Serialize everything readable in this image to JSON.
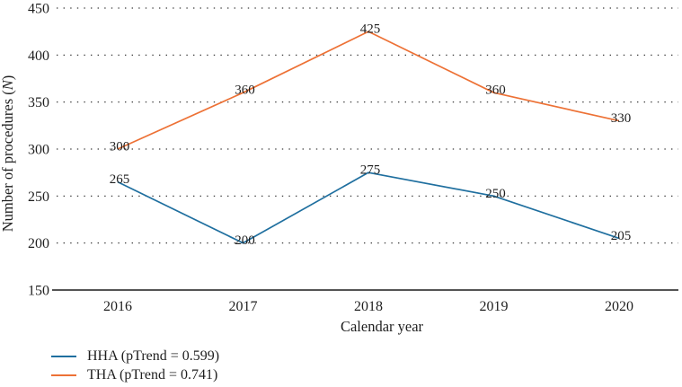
{
  "figure": {
    "background": "#ffffff",
    "text_color": "#1f1f1f"
  },
  "chart_data": {
    "type": "line",
    "title": "",
    "xlabel": "Calendar year",
    "ylabel": {
      "prefix": "Number of procedures (",
      "italic": "N",
      "suffix": ")"
    },
    "x_categories": [
      "2016",
      "2017",
      "2018",
      "2019",
      "2020"
    ],
    "y_ticks": [
      150,
      200,
      250,
      300,
      350,
      400,
      450
    ],
    "ylim": [
      150,
      450
    ],
    "grid": "horizontal dotted lines at every 50 units, no vertical grid",
    "grid_color": "#3c3c3c",
    "axis_color": "#1c1c1c",
    "legend_position": "bottom-left, below plot",
    "series": [
      {
        "name": "HHA",
        "legend_label": "HHA (pTrend = 0.599)",
        "color": "#1F6F9F",
        "values": [
          265,
          200,
          275,
          250,
          205
        ],
        "point_labels": [
          "265",
          "200",
          "275",
          "250",
          "205"
        ]
      },
      {
        "name": "THA",
        "legend_label": "THA (pTrend = 0.741)",
        "color": "#ED7135",
        "values": [
          300,
          360,
          425,
          360,
          330
        ],
        "point_labels": [
          "300",
          "360",
          "425",
          "360",
          "330"
        ]
      }
    ]
  }
}
